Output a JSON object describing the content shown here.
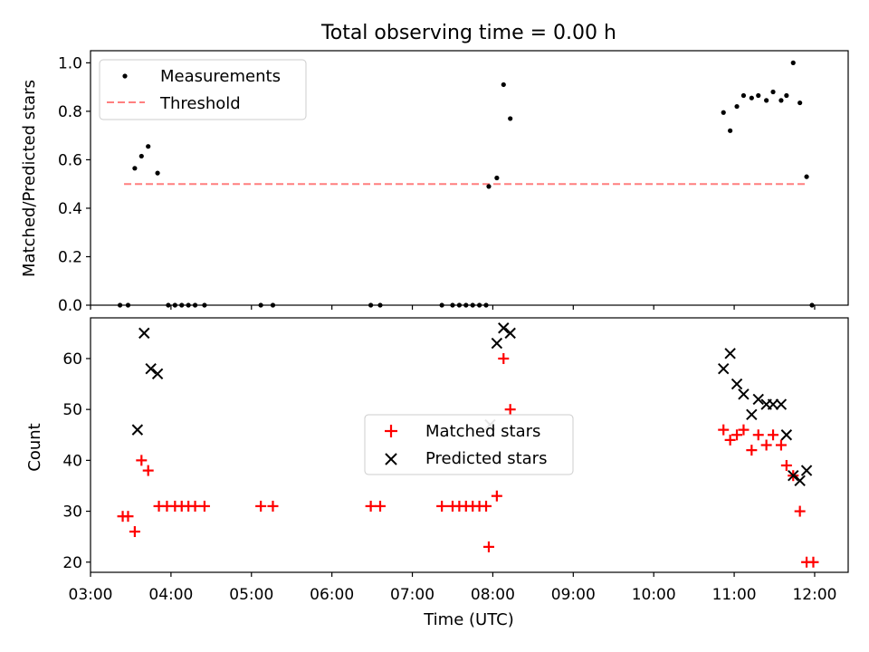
{
  "figure": {
    "title": "Total observing time = 0.00 h"
  },
  "chart_data": [
    {
      "type": "scatter",
      "ylabel": "Matched/Predicted stars",
      "xlim": [
        "03:00",
        "12:25"
      ],
      "ylim": [
        0,
        1.05
      ],
      "yticks": [
        "0.0",
        "0.2",
        "0.4",
        "0.6",
        "0.8",
        "1.0"
      ],
      "grid": false,
      "legend_position": "upper-left",
      "series": [
        {
          "name": "Measurements",
          "marker": "dot",
          "color": "#000000",
          "points": [
            [
              "03:22",
              0.0
            ],
            [
              "03:28",
              0.0
            ],
            [
              "03:33",
              0.565
            ],
            [
              "03:38",
              0.615
            ],
            [
              "03:43",
              0.655
            ],
            [
              "03:50",
              0.545
            ],
            [
              "03:58",
              0.0
            ],
            [
              "04:03",
              0.0
            ],
            [
              "04:08",
              0.0
            ],
            [
              "04:13",
              0.0
            ],
            [
              "04:18",
              0.0
            ],
            [
              "04:25",
              0.0
            ],
            [
              "05:07",
              0.0
            ],
            [
              "05:16",
              0.0
            ],
            [
              "06:29",
              0.0
            ],
            [
              "06:36",
              0.0
            ],
            [
              "07:22",
              0.0
            ],
            [
              "07:30",
              0.0
            ],
            [
              "07:35",
              0.0
            ],
            [
              "07:40",
              0.0
            ],
            [
              "07:45",
              0.0
            ],
            [
              "07:50",
              0.0
            ],
            [
              "07:55",
              0.0
            ],
            [
              "07:57",
              0.49
            ],
            [
              "08:03",
              0.525
            ],
            [
              "08:08",
              0.91
            ],
            [
              "08:13",
              0.77
            ],
            [
              "10:52",
              0.795
            ],
            [
              "10:57",
              0.72
            ],
            [
              "11:02",
              0.82
            ],
            [
              "11:07",
              0.865
            ],
            [
              "11:13",
              0.855
            ],
            [
              "11:18",
              0.865
            ],
            [
              "11:24",
              0.845
            ],
            [
              "11:29",
              0.88
            ],
            [
              "11:35",
              0.845
            ],
            [
              "11:39",
              0.865
            ],
            [
              "11:44",
              1.0
            ],
            [
              "11:49",
              0.835
            ],
            [
              "11:54",
              0.53
            ],
            [
              "11:58",
              0.0
            ]
          ]
        },
        {
          "name": "Threshold",
          "line": "dashed",
          "color": "#ff7f7f",
          "points": [
            [
              "03:25",
              0.5
            ],
            [
              "11:55",
              0.5
            ]
          ]
        }
      ]
    },
    {
      "type": "scatter",
      "xlabel": "Time (UTC)",
      "ylabel": "Count",
      "xlim": [
        "03:00",
        "12:25"
      ],
      "ylim": [
        18,
        68
      ],
      "yticks": [
        "20",
        "30",
        "40",
        "50",
        "60"
      ],
      "xticks": [
        "03:00",
        "04:00",
        "05:00",
        "06:00",
        "07:00",
        "08:00",
        "09:00",
        "10:00",
        "11:00",
        "12:00"
      ],
      "grid": false,
      "legend_position": "center",
      "series": [
        {
          "name": "Matched stars",
          "marker": "plus",
          "color": "#ff0000",
          "points": [
            [
              "03:24",
              29
            ],
            [
              "03:28",
              29
            ],
            [
              "03:33",
              26
            ],
            [
              "03:38",
              40
            ],
            [
              "03:43",
              38
            ],
            [
              "03:51",
              31
            ],
            [
              "03:57",
              31
            ],
            [
              "04:03",
              31
            ],
            [
              "04:08",
              31
            ],
            [
              "04:13",
              31
            ],
            [
              "04:18",
              31
            ],
            [
              "04:25",
              31
            ],
            [
              "05:07",
              31
            ],
            [
              "05:16",
              31
            ],
            [
              "06:29",
              31
            ],
            [
              "06:36",
              31
            ],
            [
              "07:22",
              31
            ],
            [
              "07:30",
              31
            ],
            [
              "07:35",
              31
            ],
            [
              "07:40",
              31
            ],
            [
              "07:45",
              31
            ],
            [
              "07:50",
              31
            ],
            [
              "07:55",
              31
            ],
            [
              "07:57",
              23
            ],
            [
              "08:03",
              33
            ],
            [
              "08:08",
              60
            ],
            [
              "08:13",
              50
            ],
            [
              "10:52",
              46
            ],
            [
              "10:57",
              44
            ],
            [
              "11:02",
              45
            ],
            [
              "11:07",
              46
            ],
            [
              "11:13",
              42
            ],
            [
              "11:18",
              45
            ],
            [
              "11:24",
              43
            ],
            [
              "11:29",
              45
            ],
            [
              "11:35",
              43
            ],
            [
              "11:39",
              39
            ],
            [
              "11:44",
              37
            ],
            [
              "11:49",
              30
            ],
            [
              "11:54",
              20
            ],
            [
              "11:59",
              20
            ]
          ]
        },
        {
          "name": "Predicted stars",
          "marker": "x",
          "color": "#000000",
          "points": [
            [
              "03:35",
              46
            ],
            [
              "03:40",
              65
            ],
            [
              "03:45",
              58
            ],
            [
              "03:50",
              57
            ],
            [
              "07:58",
              47
            ],
            [
              "08:03",
              63
            ],
            [
              "08:08",
              66
            ],
            [
              "08:13",
              65
            ],
            [
              "10:52",
              58
            ],
            [
              "10:57",
              61
            ],
            [
              "11:02",
              55
            ],
            [
              "11:07",
              53
            ],
            [
              "11:13",
              49
            ],
            [
              "11:18",
              52
            ],
            [
              "11:24",
              51
            ],
            [
              "11:29",
              51
            ],
            [
              "11:35",
              51
            ],
            [
              "11:39",
              45
            ],
            [
              "11:44",
              37
            ],
            [
              "11:49",
              36
            ],
            [
              "11:54",
              38
            ]
          ]
        }
      ]
    }
  ]
}
